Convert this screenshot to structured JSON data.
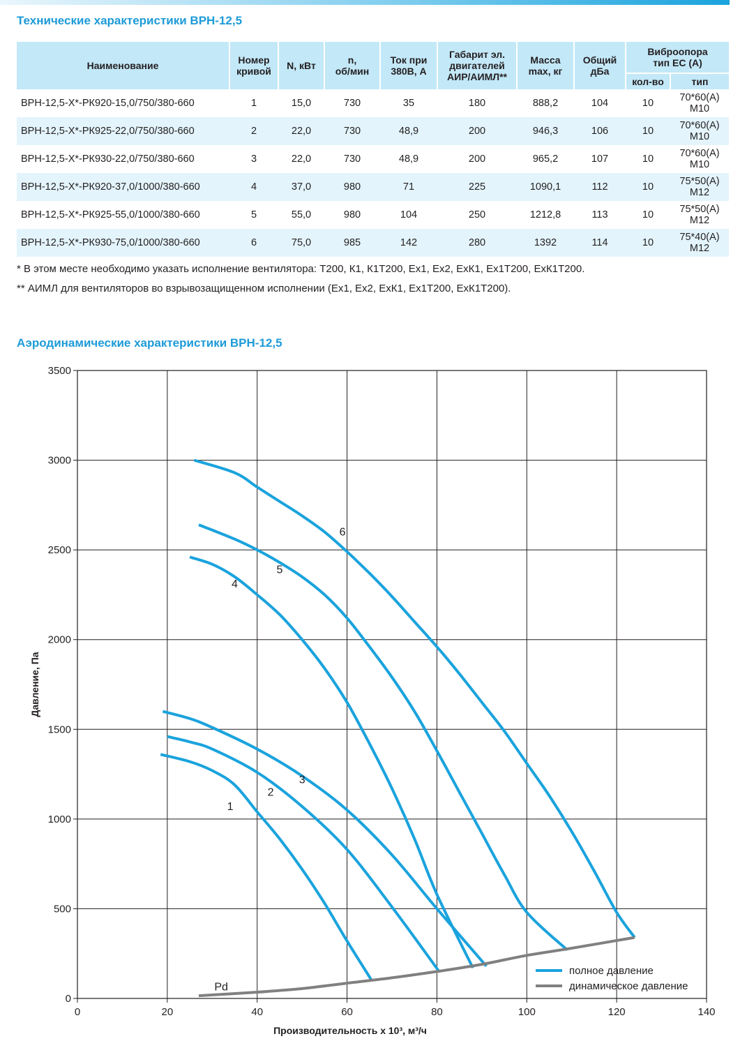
{
  "table_title": "Технические характеристики ВРН-12,5",
  "headers": {
    "name": "Наименование",
    "curve_no": [
      "Номер",
      "кривой"
    ],
    "power": "N, кВт",
    "speed": [
      "n,",
      "об/мин"
    ],
    "current": [
      "Ток при",
      "380В, А"
    ],
    "motor_size": [
      "Габарит эл.",
      "двигателей",
      "АИР/АИМЛ**"
    ],
    "mass": [
      "Масса",
      "max, кг"
    ],
    "noise": [
      "Общий",
      "дБа"
    ],
    "vibro": [
      "Виброопора",
      "тип ЕС (А)"
    ],
    "vibro_qty": "кол-во",
    "vibro_type": "тип"
  },
  "rows": [
    [
      "ВРН-12,5-Х*-РК920-15,0/750/380-660",
      "1",
      "15,0",
      "730",
      "35",
      "180",
      "888,2",
      "104",
      "10",
      "70*60(А) М10"
    ],
    [
      "ВРН-12,5-Х*-РК925-22,0/750/380-660",
      "2",
      "22,0",
      "730",
      "48,9",
      "200",
      "946,3",
      "106",
      "10",
      "70*60(А) М10"
    ],
    [
      "ВРН-12,5-Х*-РК930-22,0/750/380-660",
      "3",
      "22,0",
      "730",
      "48,9",
      "200",
      "965,2",
      "107",
      "10",
      "70*60(А) М10"
    ],
    [
      "ВРН-12,5-Х*-РК920-37,0/1000/380-660",
      "4",
      "37,0",
      "980",
      "71",
      "225",
      "1090,1",
      "112",
      "10",
      "75*50(А) М12"
    ],
    [
      "ВРН-12,5-Х*-РК925-55,0/1000/380-660",
      "5",
      "55,0",
      "980",
      "104",
      "250",
      "1212,8",
      "113",
      "10",
      "75*50(А) М12"
    ],
    [
      "ВРН-12,5-Х*-РК930-75,0/1000/380-660",
      "6",
      "75,0",
      "985",
      "142",
      "280",
      "1392",
      "114",
      "10",
      "75*40(А) М12"
    ]
  ],
  "footnotes": [
    "* В этом месте необходимо указать исполнение вентилятора: Т200, К1, К1Т200, Ех1, Ех2, ЕхК1, Ех1Т200, ЕхК1Т200.",
    "** АИМЛ для вентиляторов во взрывозащищенном исполнении (Ех1, Ех2, ЕхК1, Ех1Т200, ЕхК1Т200)."
  ],
  "chart_title": "Аэродинамические характеристики ВРН-12,5",
  "colors": {
    "full_pressure": "#1aa3dd",
    "dynamic_pressure": "#808080",
    "grid": "#231f20",
    "header_fill": "#c3e8f8",
    "row_alt_fill": "#e3f4fc"
  },
  "chart_data": {
    "type": "line",
    "title": "",
    "xlabel": "Производительность х 10³, м³/ч",
    "ylabel": "Давление, Па",
    "xlim": [
      0,
      140
    ],
    "ylim": [
      0,
      3500
    ],
    "xticks": [
      0,
      20,
      40,
      60,
      80,
      100,
      120,
      140
    ],
    "yticks": [
      0,
      500,
      1000,
      1500,
      2000,
      2500,
      3000,
      3500
    ],
    "grid": true,
    "legend_position": "bottom-right",
    "legend": [
      "полное давление",
      "динамическое давление"
    ],
    "series": [
      {
        "name": "1",
        "kind": "full",
        "label_at": [
          34,
          1050
        ],
        "x": [
          18.5,
          25,
          30,
          35,
          40,
          45,
          50,
          55,
          60,
          65.5
        ],
        "y": [
          1360,
          1320,
          1270,
          1190,
          1040,
          890,
          720,
          530,
          320,
          100
        ]
      },
      {
        "name": "2",
        "kind": "full",
        "label_at": [
          43,
          1130
        ],
        "x": [
          20,
          25,
          30,
          40,
          50,
          60,
          70,
          80.5
        ],
        "y": [
          1460,
          1430,
          1390,
          1260,
          1070,
          830,
          510,
          150
        ]
      },
      {
        "name": "3",
        "kind": "full",
        "label_at": [
          50,
          1200
        ],
        "x": [
          19,
          25,
          30,
          40,
          50,
          60,
          70,
          80,
          91
        ],
        "y": [
          1600,
          1560,
          1510,
          1390,
          1240,
          1050,
          800,
          500,
          180
        ]
      },
      {
        "name": "4",
        "kind": "full",
        "label_at": [
          35,
          2290
        ],
        "x": [
          25,
          30,
          35,
          40,
          45,
          50,
          55,
          60,
          65,
          70,
          75,
          80,
          88
        ],
        "y": [
          2460,
          2420,
          2350,
          2250,
          2140,
          2000,
          1840,
          1650,
          1420,
          1170,
          890,
          580,
          170
        ]
      },
      {
        "name": "5",
        "kind": "full",
        "label_at": [
          45,
          2370
        ],
        "x": [
          27,
          35,
          40,
          45,
          50,
          55,
          60,
          65,
          70,
          75,
          80,
          85,
          90,
          95,
          100,
          109
        ],
        "y": [
          2640,
          2560,
          2500,
          2430,
          2350,
          2250,
          2120,
          1960,
          1790,
          1600,
          1380,
          1150,
          920,
          690,
          480,
          270
        ]
      },
      {
        "name": "6",
        "kind": "full",
        "label_at": [
          59,
          2580
        ],
        "x": [
          26,
          35,
          40,
          45,
          50,
          55,
          60,
          65,
          70,
          75,
          80,
          85,
          90,
          95,
          100,
          105,
          110,
          115,
          120,
          124
        ],
        "y": [
          3000,
          2930,
          2850,
          2770,
          2690,
          2600,
          2490,
          2370,
          2240,
          2100,
          1960,
          1810,
          1650,
          1490,
          1310,
          1130,
          930,
          710,
          480,
          340
        ]
      },
      {
        "name": "Pd",
        "kind": "dynamic",
        "label_at": [
          32,
          45
        ],
        "x": [
          27,
          40,
          50,
          60,
          70,
          80,
          90,
          100,
          110,
          124
        ],
        "y": [
          15,
          35,
          55,
          85,
          115,
          150,
          190,
          240,
          280,
          340
        ]
      }
    ]
  }
}
